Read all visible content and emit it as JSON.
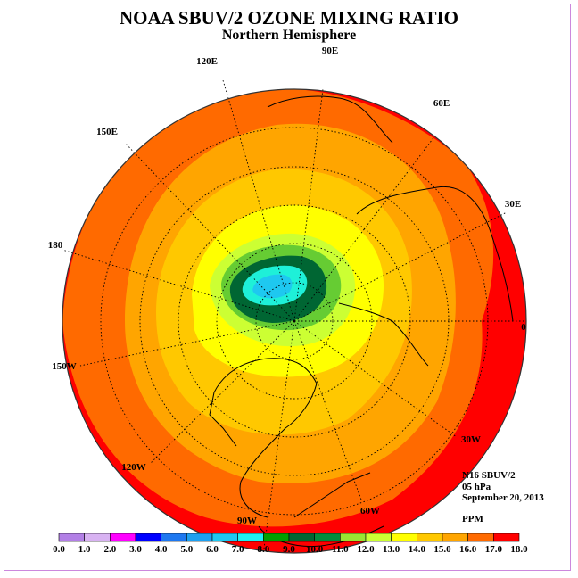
{
  "header": {
    "title": "NOAA SBUV/2 OZONE MIXING RATIO",
    "subtitle": "Northern Hemisphere"
  },
  "map": {
    "projection": "north-polar-stereographic",
    "longitude_labels": [
      "90E",
      "60E",
      "30E",
      "0",
      "30W",
      "60W",
      "90W",
      "120W",
      "150W",
      "180",
      "150E",
      "120E"
    ],
    "field_description_colors": {
      "outer_ring": "#ff0000",
      "mid_ring": "#ff6a00",
      "inner_orange": "#ffa500",
      "light_orange": "#ffc000",
      "yellow": "#ffff00",
      "yellow_green": "#ccff33",
      "green": "#66cc33",
      "dark_green": "#006633",
      "core": "#33ffdd",
      "center": "#66ccff"
    }
  },
  "info": {
    "instrument": "N16 SBUV/2",
    "level": "05 hPa",
    "date": "September 20, 2013",
    "units": "PPM"
  },
  "colorbar": {
    "labels": [
      "0.0",
      "1.0",
      "2.0",
      "3.0",
      "4.0",
      "5.0",
      "6.0",
      "7.0",
      "8.0",
      "9.0",
      "10.0",
      "11.0",
      "12.0",
      "13.0",
      "14.0",
      "15.0",
      "16.0",
      "17.0",
      "18.0"
    ],
    "colors": [
      "#b27fe6",
      "#d8b2f2",
      "#ff00ff",
      "#0000ff",
      "#1e78f0",
      "#1ea0f0",
      "#1ec8f0",
      "#1ef0f0",
      "#00a000",
      "#006633",
      "#008c3c",
      "#99e633",
      "#ccff33",
      "#ffff00",
      "#ffc800",
      "#ffa500",
      "#ff6a00",
      "#ff0000",
      "#8c5028"
    ]
  }
}
